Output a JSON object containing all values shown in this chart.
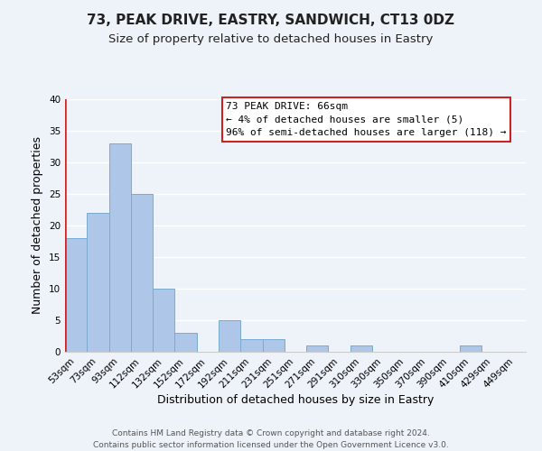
{
  "title": "73, PEAK DRIVE, EASTRY, SANDWICH, CT13 0DZ",
  "subtitle": "Size of property relative to detached houses in Eastry",
  "xlabel": "Distribution of detached houses by size in Eastry",
  "ylabel": "Number of detached properties",
  "footer_line1": "Contains HM Land Registry data © Crown copyright and database right 2024.",
  "footer_line2": "Contains public sector information licensed under the Open Government Licence v3.0.",
  "bin_labels": [
    "53sqm",
    "73sqm",
    "93sqm",
    "112sqm",
    "132sqm",
    "152sqm",
    "172sqm",
    "192sqm",
    "211sqm",
    "231sqm",
    "251sqm",
    "271sqm",
    "291sqm",
    "310sqm",
    "330sqm",
    "350sqm",
    "370sqm",
    "390sqm",
    "410sqm",
    "429sqm",
    "449sqm"
  ],
  "bar_values": [
    18,
    22,
    33,
    25,
    10,
    3,
    0,
    5,
    2,
    2,
    0,
    1,
    0,
    1,
    0,
    0,
    0,
    0,
    1,
    0,
    0
  ],
  "bar_color": "#aec6e8",
  "bar_edge_color": "#7aaad0",
  "highlight_color": "#cc2222",
  "annotation_text": "73 PEAK DRIVE: 66sqm\n← 4% of detached houses are smaller (5)\n96% of semi-detached houses are larger (118) →",
  "annotation_box_color": "#ffffff",
  "annotation_box_edge": "#cc2222",
  "ylim": [
    0,
    40
  ],
  "yticks": [
    0,
    5,
    10,
    15,
    20,
    25,
    30,
    35,
    40
  ],
  "background_color": "#eef2f9",
  "grid_color": "#ffffff",
  "title_fontsize": 11,
  "subtitle_fontsize": 9.5,
  "axis_label_fontsize": 9,
  "tick_fontsize": 7.5,
  "footer_fontsize": 6.5,
  "annotation_fontsize": 8
}
